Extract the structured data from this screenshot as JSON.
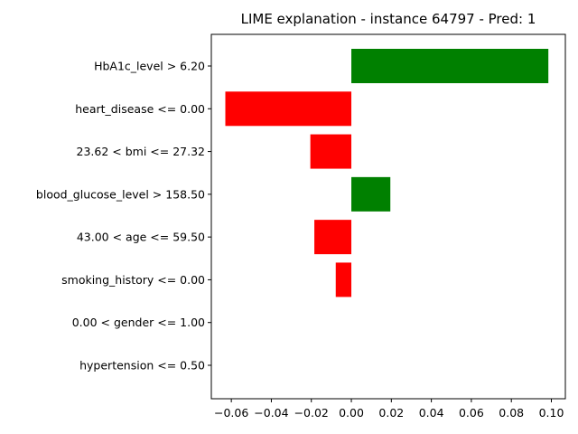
{
  "chart_data": {
    "type": "bar",
    "orientation": "horizontal",
    "title": "LIME explanation - instance 64797 - Pred: 1",
    "xlabel": "",
    "ylabel": "",
    "xlim": [
      -0.07,
      0.107
    ],
    "grid": false,
    "legend": "none",
    "x_ticks": [
      "−0.06",
      "−0.04",
      "−0.02",
      "0.00",
      "0.02",
      "0.04",
      "0.06",
      "0.08",
      "0.10"
    ],
    "x_tick_values": [
      -0.06,
      -0.04,
      -0.02,
      0.0,
      0.02,
      0.04,
      0.06,
      0.08,
      0.1
    ],
    "positive_color": "#008000",
    "negative_color": "#ff0000",
    "categories": [
      "HbA1c_level > 6.20",
      "heart_disease <= 0.00",
      "23.62 < bmi <= 27.32",
      "blood_glucose_level > 158.50",
      "43.00 < age <= 59.50",
      "smoking_history <= 0.00",
      "0.00 < gender <= 1.00",
      "hypertension <= 0.50"
    ],
    "values": [
      0.0985,
      -0.063,
      -0.0205,
      0.0195,
      -0.0185,
      -0.0078,
      0.0,
      0.0
    ]
  }
}
